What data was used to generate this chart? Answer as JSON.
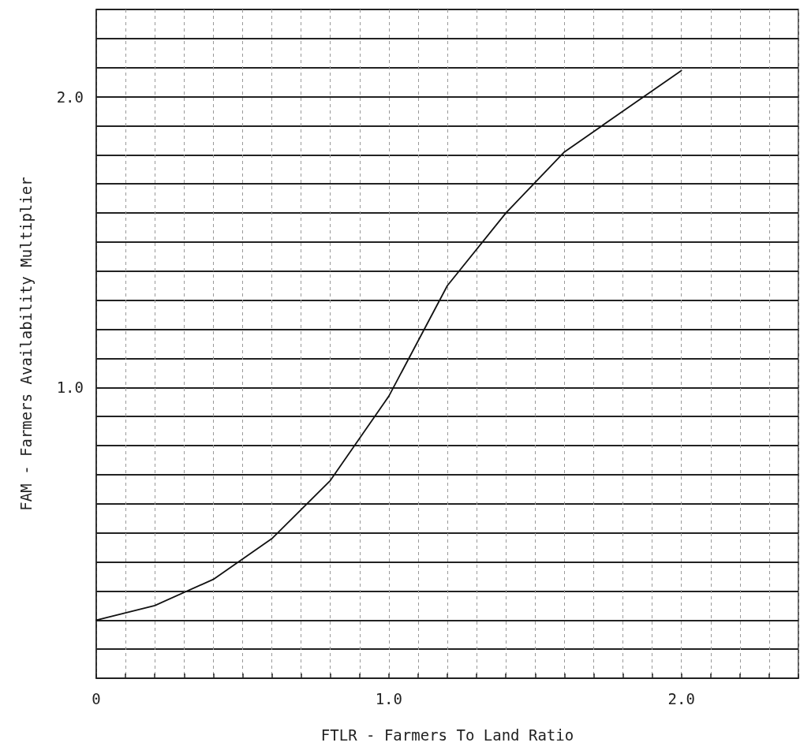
{
  "chart_data": {
    "type": "line",
    "xlabel": "FTLR - Farmers To Land Ratio",
    "ylabel": "FAM - Farmers Availability Multiplier",
    "x": [
      0,
      0.2,
      0.4,
      0.6,
      0.8,
      1.0,
      1.2,
      1.4,
      1.6,
      1.8,
      2.0
    ],
    "series": [
      {
        "color": "#111111",
        "values": [
          0.2,
          0.25,
          0.34,
          0.48,
          0.68,
          0.97,
          1.35,
          1.6,
          1.81,
          1.95,
          2.09
        ]
      }
    ],
    "xlim": [
      0,
      2.4
    ],
    "ylim": [
      0,
      2.3
    ],
    "xticks": [
      0,
      {
        "value": 0.1,
        "label": null
      },
      {
        "value": 0.2,
        "label": null
      },
      {
        "value": 0.3,
        "label": null
      },
      {
        "value": 0.4,
        "label": null
      },
      {
        "value": 0.5,
        "label": null
      },
      {
        "value": 0.6,
        "label": null
      },
      {
        "value": 0.7,
        "label": null
      },
      {
        "value": 0.8,
        "label": null
      },
      {
        "value": 0.9,
        "label": null
      },
      {
        "value": 1,
        "label": "1.0"
      },
      {
        "value": 1.1,
        "label": null
      },
      {
        "value": 1.2,
        "label": null
      },
      {
        "value": 1.3,
        "label": null
      },
      {
        "value": 1.4,
        "label": null
      },
      {
        "value": 1.5,
        "label": null
      },
      {
        "value": 1.6,
        "label": null
      },
      {
        "value": 1.7,
        "label": null
      },
      {
        "value": 1.8,
        "label": null
      },
      {
        "value": 1.9,
        "label": null
      },
      {
        "value": 2,
        "label": "2.0"
      },
      {
        "value": 2.1,
        "label": null
      },
      {
        "value": 2.2,
        "label": null
      },
      {
        "value": 2.3,
        "label": null
      }
    ],
    "yticks": [
      {
        "value": 0,
        "label": null
      },
      {
        "value": 0.1,
        "label": null
      },
      {
        "value": 0.2,
        "label": null
      },
      {
        "value": 0.3,
        "label": null
      },
      {
        "value": 0.4,
        "label": null
      },
      {
        "value": 0.5,
        "label": null
      },
      {
        "value": 0.6,
        "label": null
      },
      {
        "value": 0.7,
        "label": null
      },
      {
        "value": 0.8,
        "label": null
      },
      {
        "value": 0.9,
        "label": null
      },
      {
        "value": 1,
        "label": "1.0"
      },
      {
        "value": 1.1,
        "label": null
      },
      {
        "value": 1.2,
        "label": null
      },
      {
        "value": 1.3,
        "label": null
      },
      {
        "value": 1.4,
        "label": null
      },
      {
        "value": 1.5,
        "label": null
      },
      {
        "value": 1.6,
        "label": null
      },
      {
        "value": 1.7,
        "label": null
      },
      {
        "value": 1.8,
        "label": null
      },
      {
        "value": 1.9,
        "label": null
      },
      {
        "value": 2,
        "label": "2.0"
      },
      {
        "value": 2.1,
        "label": null
      },
      {
        "value": 2.2,
        "label": null
      },
      {
        "value": 2.3,
        "label": null
      }
    ],
    "grid": true,
    "marker": "none",
    "line_style": "solid"
  }
}
